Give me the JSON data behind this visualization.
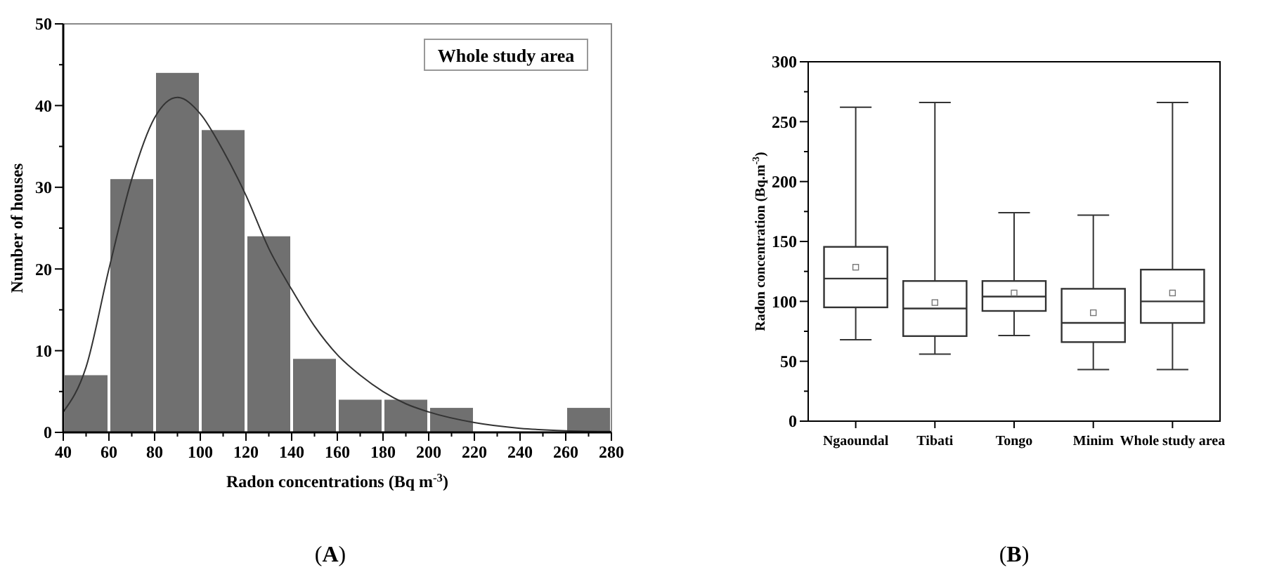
{
  "chart_data": [
    {
      "type": "histogram",
      "title": "(A)",
      "xlabel": "Radon concentrations (Bq m$^{-3}$)",
      "ylabel": "Number of houses",
      "annotations": [
        "Whole study area"
      ],
      "xlim": [
        40,
        280
      ],
      "xticks": [
        40,
        {
          "value": 50,
          "label": null
        },
        60,
        {
          "value": 70,
          "label": null
        },
        80,
        {
          "value": 90,
          "label": null
        },
        100,
        {
          "value": 110,
          "label": null
        },
        120,
        {
          "value": 130,
          "label": null
        },
        140,
        {
          "value": 150,
          "label": null
        },
        160,
        {
          "value": 170,
          "label": null
        },
        180,
        {
          "value": 190,
          "label": null
        },
        200,
        {
          "value": 210,
          "label": null
        },
        220,
        {
          "value": 230,
          "label": null
        },
        240,
        {
          "value": 250,
          "label": null
        },
        260,
        {
          "value": 270,
          "label": null
        },
        280
      ],
      "ylim": [
        0,
        50
      ],
      "yticks": [
        0,
        {
          "value": 5,
          "label": null
        },
        10,
        {
          "value": 15,
          "label": null
        },
        20,
        {
          "value": 25,
          "label": null
        },
        30,
        {
          "value": 35,
          "label": null
        },
        40,
        {
          "value": 45,
          "label": null
        },
        50
      ],
      "series": [
        {
          "type": "histogram",
          "color": "#707070",
          "bins": [
            40,
            60,
            80,
            100,
            120,
            140,
            160,
            180,
            200,
            220,
            240,
            260,
            280
          ],
          "values": [
            7,
            31,
            44,
            37,
            24,
            9,
            4,
            4,
            3,
            0,
            0,
            3
          ]
        },
        {
          "type": "line",
          "color": "#333333",
          "x": [
            40,
            50,
            60,
            70,
            80,
            90,
            100,
            110,
            120,
            130,
            140,
            150,
            160,
            170,
            180,
            190,
            200,
            220,
            240,
            260,
            280
          ],
          "values": [
            2.5,
            8,
            20,
            31,
            38.5,
            41,
            39,
            34.5,
            29,
            22.5,
            17.5,
            13,
            9.5,
            7,
            5,
            3.5,
            2.5,
            1.2,
            0.5,
            0.2,
            0.1
          ]
        }
      ]
    },
    {
      "type": "box",
      "title": "(B)",
      "ylabel": "Radon concentration (Bq.m$^{-3}$)",
      "categories": [
        "Ngaoundal",
        "Tibati",
        "Tongo",
        "Minim",
        "Whole study area"
      ],
      "ylim": [
        0,
        300
      ],
      "yticks": [
        0,
        {
          "value": 25,
          "label": null
        },
        50,
        {
          "value": 75,
          "label": null
        },
        100,
        {
          "value": 125,
          "label": null
        },
        150,
        {
          "value": 175,
          "label": null
        },
        200,
        {
          "value": 225,
          "label": null
        },
        250,
        {
          "value": 275,
          "label": null
        },
        300
      ],
      "color": "#333333",
      "boxes": [
        {
          "low": 68,
          "q1": 95,
          "median": 119,
          "q3": 145.5,
          "high": 262,
          "mean": 128.5
        },
        {
          "low": 56,
          "q1": 71,
          "median": 94,
          "q3": 117,
          "high": 266,
          "mean": 99
        },
        {
          "low": 71.5,
          "q1": 92,
          "median": 104,
          "q3": 117,
          "high": 174,
          "mean": 107
        },
        {
          "low": 43,
          "q1": 66,
          "median": 82,
          "q3": 110.5,
          "high": 172,
          "mean": 90.5
        },
        {
          "low": 43,
          "q1": 82,
          "median": 100,
          "q3": 126.5,
          "high": 266,
          "mean": 107
        }
      ]
    }
  ]
}
